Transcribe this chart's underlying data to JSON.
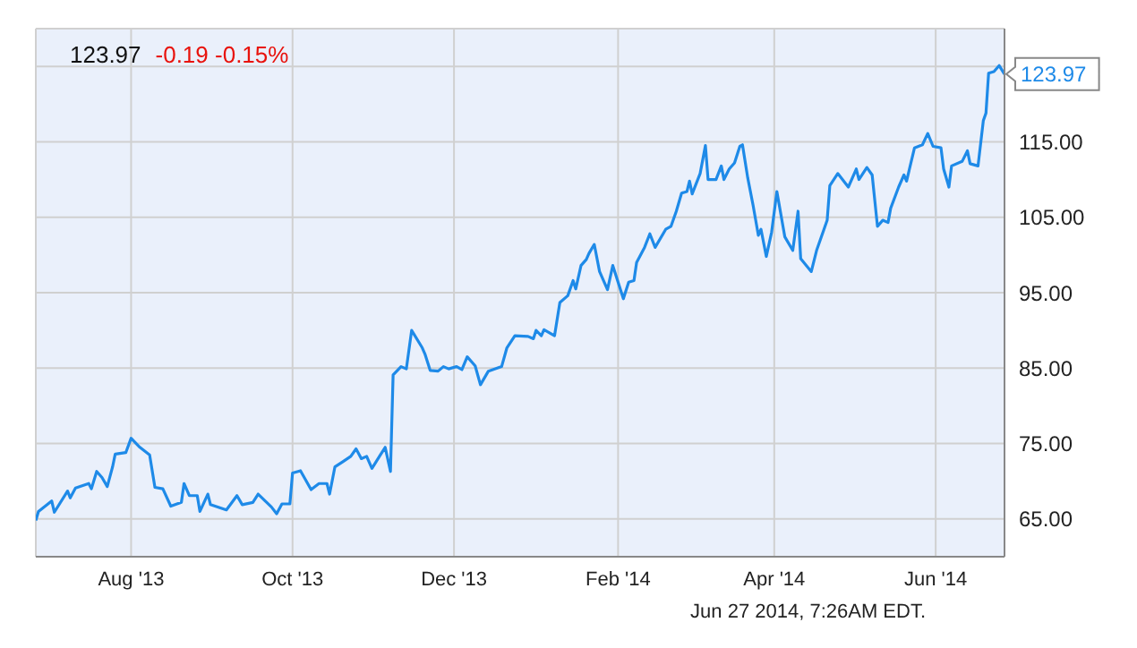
{
  "chart_data": {
    "type": "line",
    "title": "123.97",
    "subtitle": "-0.19 -0.15%",
    "annotations": [
      {
        "text": "123.97",
        "x": "2014-06-27",
        "y": 123.97
      },
      "Jun 27 2014, 7:26AM EDT."
    ],
    "x": [
      "2013-06-26",
      "2013-06-27",
      "2013-07-02",
      "2013-07-03",
      "2013-07-08",
      "2013-07-09",
      "2013-07-11",
      "2013-07-16",
      "2013-07-17",
      "2013-07-19",
      "2013-07-21",
      "2013-07-23",
      "2013-07-25",
      "2013-07-26",
      "2013-07-30",
      "2013-08-01",
      "2013-08-04",
      "2013-08-08",
      "2013-08-10",
      "2013-08-13",
      "2013-08-16",
      "2013-08-20",
      "2013-08-21",
      "2013-08-23",
      "2013-08-26",
      "2013-08-27",
      "2013-08-30",
      "2013-08-31",
      "2013-09-06",
      "2013-09-10",
      "2013-09-12",
      "2013-09-16",
      "2013-09-18",
      "2013-09-23",
      "2013-09-25",
      "2013-09-27",
      "2013-09-30",
      "2013-10-01",
      "2013-10-04",
      "2013-10-08",
      "2013-10-11",
      "2013-10-14",
      "2013-10-15",
      "2013-10-17",
      "2013-10-20",
      "2013-10-23",
      "2013-10-25",
      "2013-10-27",
      "2013-10-29",
      "2013-10-31",
      "2013-11-03",
      "2013-11-05",
      "2013-11-07",
      "2013-11-08",
      "2013-11-11",
      "2013-11-13",
      "2013-11-15",
      "2013-11-19",
      "2013-11-20",
      "2013-11-22",
      "2013-11-25",
      "2013-11-27",
      "2013-11-29",
      "2013-12-02",
      "2013-12-04",
      "2013-12-06",
      "2013-12-09",
      "2013-12-11",
      "2013-12-14",
      "2013-12-19",
      "2013-12-21",
      "2013-12-24",
      "2013-12-29",
      "2013-12-31",
      "2014-01-01",
      "2014-01-03",
      "2014-01-04",
      "2014-01-08",
      "2014-01-10",
      "2014-01-13",
      "2014-01-15",
      "2014-01-16",
      "2014-01-18",
      "2014-01-20",
      "2014-01-21",
      "2014-01-23",
      "2014-01-25",
      "2014-01-28",
      "2014-01-30",
      "2014-02-03",
      "2014-02-05",
      "2014-02-07",
      "2014-02-08",
      "2014-02-11",
      "2014-02-13",
      "2014-02-15",
      "2014-02-19",
      "2014-02-21",
      "2014-02-23",
      "2014-02-25",
      "2014-02-27",
      "2014-02-28",
      "2014-03-01",
      "2014-03-04",
      "2014-03-06",
      "2014-03-07",
      "2014-03-10",
      "2014-03-12",
      "2014-03-13",
      "2014-03-15",
      "2014-03-17",
      "2014-03-19",
      "2014-03-20",
      "2014-03-22",
      "2014-03-24",
      "2014-03-26",
      "2014-03-27",
      "2014-03-29",
      "2014-03-31",
      "2014-04-02",
      "2014-04-05",
      "2014-04-08",
      "2014-04-10",
      "2014-04-11",
      "2014-04-15",
      "2014-04-17",
      "2014-04-21",
      "2014-04-22",
      "2014-04-25",
      "2014-04-29",
      "2014-05-02",
      "2014-05-03",
      "2014-05-06",
      "2014-05-08",
      "2014-05-10",
      "2014-05-12",
      "2014-05-14",
      "2014-05-15",
      "2014-05-18",
      "2014-05-20",
      "2014-05-21",
      "2014-05-24",
      "2014-05-27",
      "2014-05-29",
      "2014-05-31",
      "2014-06-03",
      "2014-06-04",
      "2014-06-06",
      "2014-06-07",
      "2014-06-11",
      "2014-06-13",
      "2014-06-14",
      "2014-06-17",
      "2014-06-19",
      "2014-06-20",
      "2014-06-21",
      "2014-06-23",
      "2014-06-25",
      "2014-06-27"
    ],
    "series": [
      {
        "color": "#1e8ae8",
        "values": [
          64.8,
          66.0,
          67.4,
          65.9,
          68.7,
          67.8,
          69.1,
          69.7,
          69.0,
          71.3,
          70.5,
          69.3,
          71.9,
          73.6,
          73.8,
          75.7,
          74.6,
          73.5,
          69.2,
          69.0,
          66.7,
          67.2,
          69.7,
          68.1,
          68.1,
          66.0,
          68.3,
          66.9,
          66.2,
          68.1,
          66.9,
          67.2,
          68.3,
          66.6,
          65.7,
          67.0,
          67.0,
          71.1,
          71.4,
          68.9,
          69.7,
          69.7,
          68.3,
          71.9,
          72.6,
          73.3,
          74.3,
          73.0,
          73.3,
          71.7,
          73.4,
          74.5,
          71.3,
          84.1,
          85.2,
          84.9,
          90.0,
          87.7,
          86.9,
          84.7,
          84.6,
          85.2,
          84.9,
          85.2,
          84.8,
          86.5,
          85.3,
          82.8,
          84.6,
          85.2,
          87.7,
          89.3,
          89.2,
          88.9,
          90.0,
          89.3,
          90.1,
          89.3,
          93.7,
          94.6,
          96.6,
          95.5,
          98.6,
          99.4,
          100.2,
          101.4,
          97.8,
          95.4,
          98.6,
          94.2,
          96.4,
          96.6,
          99.0,
          101.0,
          102.8,
          101.0,
          103.4,
          103.8,
          105.8,
          108.2,
          108.4,
          109.8,
          108.1,
          110.8,
          114.5,
          110.0,
          110.0,
          111.8,
          110.0,
          111.4,
          112.2,
          114.4,
          114.6,
          110.2,
          106.6,
          102.6,
          103.4,
          99.8,
          103.0,
          108.4,
          102.4,
          100.6,
          105.8,
          99.5,
          97.8,
          100.6,
          104.6,
          109.2,
          110.8,
          109.0,
          111.4,
          110.0,
          111.6,
          110.6,
          103.8,
          104.6,
          104.3,
          106.2,
          109.0,
          110.6,
          109.8,
          114.2,
          114.6,
          116.1,
          114.4,
          114.2,
          111.4,
          109.0,
          111.8,
          112.4,
          113.8,
          112.1,
          111.8,
          117.8,
          118.8,
          124.1,
          124.3,
          125.1,
          123.97
        ]
      }
    ],
    "xlim": [
      "2013-06-26",
      "2014-06-27"
    ],
    "xticks": [
      {
        "value": "2013-08-01",
        "label": "Aug '13"
      },
      {
        "value": "2013-10-01",
        "label": "Oct '13"
      },
      {
        "value": "2013-12-01",
        "label": "Dec '13"
      },
      {
        "value": "2014-02-01",
        "label": "Feb '14"
      },
      {
        "value": "2014-04-01",
        "label": "Apr '14"
      },
      {
        "value": "2014-06-01",
        "label": "Jun '14"
      }
    ],
    "ylim": [
      60,
      130
    ],
    "yticks": [
      {
        "value": 65,
        "label": "65.00"
      },
      {
        "value": 75,
        "label": "75.00"
      },
      {
        "value": 85,
        "label": "85.00"
      },
      {
        "value": 95,
        "label": "95.00"
      },
      {
        "value": 105,
        "label": "105.00"
      },
      {
        "value": 115,
        "label": "115.00"
      },
      {
        "value": 125,
        "label": null
      }
    ],
    "grid": true,
    "marker": "none",
    "line_style": "solid",
    "legend": false
  }
}
